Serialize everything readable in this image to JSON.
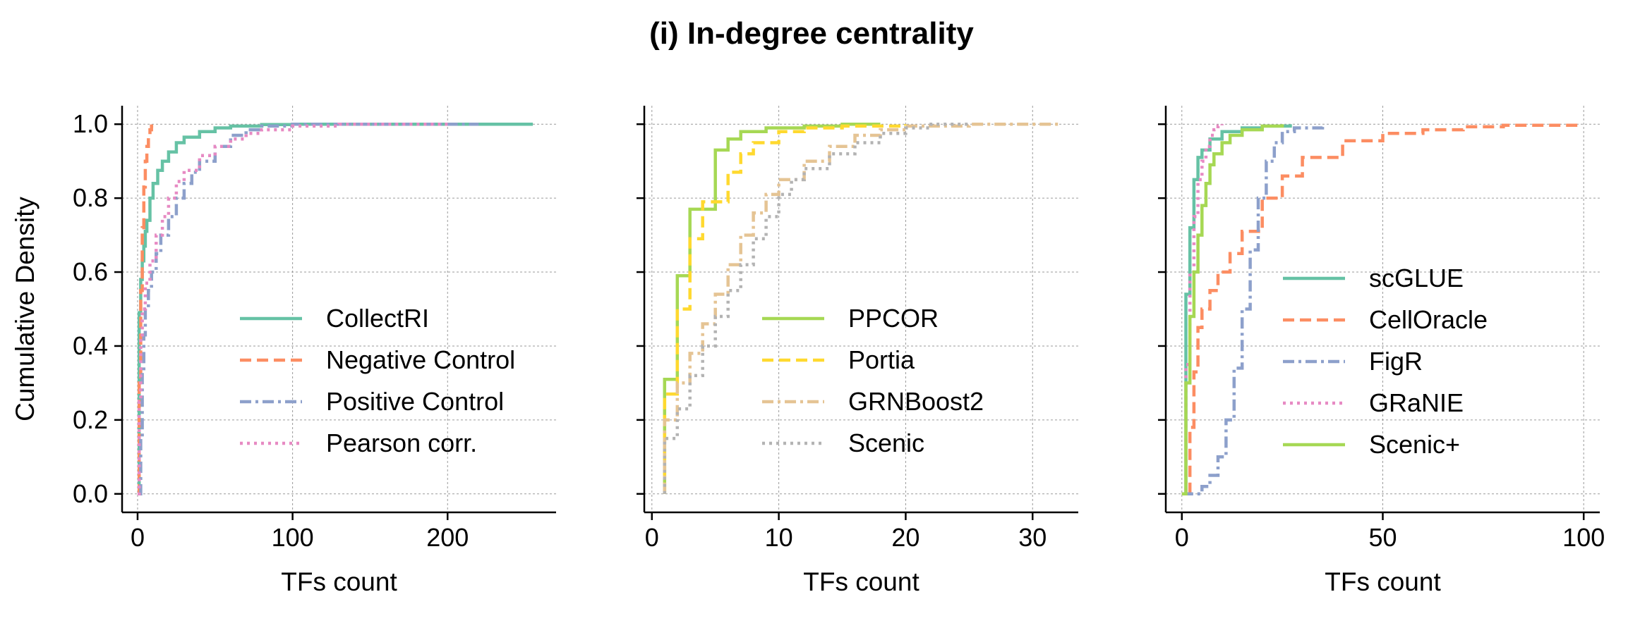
{
  "figure": {
    "title": "(i) In-degree centrality"
  },
  "chart_data": [
    {
      "type": "line",
      "step": true,
      "title": "",
      "xlabel": "TFs count",
      "ylabel": "Cumulative Density",
      "xlim": [
        -10,
        270
      ],
      "ylim": [
        -0.05,
        1.05
      ],
      "xticks": [
        0,
        100,
        200
      ],
      "yticks": [
        0.0,
        0.2,
        0.4,
        0.6,
        0.8,
        1.0
      ],
      "grid": true,
      "legend": "lower-right",
      "series": [
        {
          "name": "CollectRI",
          "color": "#66c2a5",
          "dash": "solid",
          "points": [
            [
              0,
              0
            ],
            [
              1,
              0.49
            ],
            [
              2,
              0.58
            ],
            [
              3,
              0.63
            ],
            [
              4,
              0.67
            ],
            [
              5,
              0.71
            ],
            [
              6,
              0.74
            ],
            [
              8,
              0.8
            ],
            [
              10,
              0.84
            ],
            [
              13,
              0.875
            ],
            [
              16,
              0.9
            ],
            [
              20,
              0.925
            ],
            [
              25,
              0.95
            ],
            [
              30,
              0.965
            ],
            [
              40,
              0.98
            ],
            [
              50,
              0.99
            ],
            [
              60,
              0.995
            ],
            [
              80,
              0.999
            ],
            [
              100,
              1.0
            ],
            [
              255,
              1.0
            ]
          ]
        },
        {
          "name": "Negative Control",
          "color": "#fc8d62",
          "dash": "dashed",
          "points": [
            [
              0,
              0
            ],
            [
              1,
              0.3
            ],
            [
              2,
              0.55
            ],
            [
              3,
              0.72
            ],
            [
              4,
              0.83
            ],
            [
              5,
              0.9
            ],
            [
              6,
              0.94
            ],
            [
              7,
              0.97
            ],
            [
              8,
              0.985
            ],
            [
              9,
              0.995
            ],
            [
              11,
              1.0
            ]
          ]
        },
        {
          "name": "Positive Control",
          "color": "#8da0cb",
          "dash": "dashdot",
          "points": [
            [
              1,
              0
            ],
            [
              2,
              0.15
            ],
            [
              3,
              0.33
            ],
            [
              4,
              0.43
            ],
            [
              5,
              0.5
            ],
            [
              7,
              0.55
            ],
            [
              9,
              0.6
            ],
            [
              12,
              0.65
            ],
            [
              15,
              0.7
            ],
            [
              20,
              0.75
            ],
            [
              25,
              0.8
            ],
            [
              30,
              0.84
            ],
            [
              35,
              0.87
            ],
            [
              40,
              0.9
            ],
            [
              50,
              0.94
            ],
            [
              60,
              0.97
            ],
            [
              70,
              0.985
            ],
            [
              80,
              0.995
            ],
            [
              100,
              1.0
            ],
            [
              220,
              1.0
            ]
          ]
        },
        {
          "name": "Pearson corr.",
          "color": "#e78ac3",
          "dash": "dotted",
          "points": [
            [
              0,
              0
            ],
            [
              1,
              0.25
            ],
            [
              2,
              0.42
            ],
            [
              3,
              0.5
            ],
            [
              5,
              0.57
            ],
            [
              8,
              0.63
            ],
            [
              12,
              0.7
            ],
            [
              16,
              0.75
            ],
            [
              20,
              0.8
            ],
            [
              25,
              0.845
            ],
            [
              30,
              0.875
            ],
            [
              40,
              0.915
            ],
            [
              50,
              0.94
            ],
            [
              60,
              0.96
            ],
            [
              70,
              0.975
            ],
            [
              80,
              0.985
            ],
            [
              100,
              0.995
            ],
            [
              130,
              1.0
            ],
            [
              200,
              1.0
            ]
          ]
        }
      ]
    },
    {
      "type": "line",
      "step": true,
      "title": "",
      "xlabel": "TFs count",
      "ylabel": "",
      "xlim": [
        -0.6,
        33.6
      ],
      "ylim": [
        -0.05,
        1.05
      ],
      "xticks": [
        0,
        10,
        20,
        30
      ],
      "yticks": [
        0.0,
        0.2,
        0.4,
        0.6,
        0.8,
        1.0
      ],
      "grid": true,
      "legend": "lower-right",
      "series": [
        {
          "name": "PPCOR",
          "color": "#a6d854",
          "dash": "solid",
          "points": [
            [
              1,
              0
            ],
            [
              1,
              0.31
            ],
            [
              2,
              0.59
            ],
            [
              3,
              0.77
            ],
            [
              5,
              0.93
            ],
            [
              6,
              0.96
            ],
            [
              7,
              0.98
            ],
            [
              9,
              0.99
            ],
            [
              12,
              0.995
            ],
            [
              15,
              1.0
            ],
            [
              18,
              1.0
            ]
          ]
        },
        {
          "name": "Portia",
          "color": "#ffd92f",
          "dash": "dashed",
          "points": [
            [
              1,
              0
            ],
            [
              1,
              0.27
            ],
            [
              2,
              0.5
            ],
            [
              3,
              0.69
            ],
            [
              4,
              0.79
            ],
            [
              6,
              0.87
            ],
            [
              7,
              0.92
            ],
            [
              8,
              0.95
            ],
            [
              10,
              0.98
            ],
            [
              12,
              0.99
            ],
            [
              15,
              0.995
            ],
            [
              20,
              1.0
            ]
          ]
        },
        {
          "name": "GRNBoost2",
          "color": "#e5c494",
          "dash": "dashdot",
          "points": [
            [
              1,
              0
            ],
            [
              1,
              0.2
            ],
            [
              2,
              0.3
            ],
            [
              3,
              0.38
            ],
            [
              4,
              0.46
            ],
            [
              5,
              0.54
            ],
            [
              6,
              0.62
            ],
            [
              7,
              0.7
            ],
            [
              8,
              0.76
            ],
            [
              9,
              0.81
            ],
            [
              10,
              0.85
            ],
            [
              12,
              0.9
            ],
            [
              14,
              0.94
            ],
            [
              16,
              0.97
            ],
            [
              18,
              0.985
            ],
            [
              20,
              0.995
            ],
            [
              25,
              1.0
            ],
            [
              32,
              1.0
            ]
          ]
        },
        {
          "name": "Scenic",
          "color": "#b3b3b3",
          "dash": "dotted",
          "points": [
            [
              1,
              0
            ],
            [
              1,
              0.15
            ],
            [
              2,
              0.23
            ],
            [
              3,
              0.32
            ],
            [
              4,
              0.4
            ],
            [
              5,
              0.48
            ],
            [
              6,
              0.55
            ],
            [
              7,
              0.62
            ],
            [
              8,
              0.69
            ],
            [
              9,
              0.75
            ],
            [
              10,
              0.81
            ],
            [
              11,
              0.85
            ],
            [
              12,
              0.88
            ],
            [
              14,
              0.92
            ],
            [
              16,
              0.95
            ],
            [
              18,
              0.975
            ],
            [
              20,
              0.99
            ],
            [
              22,
              1.0
            ],
            [
              25,
              1.0
            ]
          ]
        }
      ]
    },
    {
      "type": "line",
      "step": true,
      "title": "",
      "xlabel": "TFs count",
      "ylabel": "",
      "xlim": [
        -4,
        104
      ],
      "ylim": [
        -0.05,
        1.05
      ],
      "xticks": [
        0,
        50,
        100
      ],
      "yticks": [
        0.0,
        0.2,
        0.4,
        0.6,
        0.8,
        1.0
      ],
      "grid": true,
      "legend": "center-right",
      "series": [
        {
          "name": "scGLUE",
          "color": "#66c2a5",
          "dash": "solid",
          "points": [
            [
              0,
              0
            ],
            [
              1,
              0.54
            ],
            [
              2,
              0.72
            ],
            [
              3,
              0.85
            ],
            [
              4,
              0.91
            ],
            [
              5,
              0.93
            ],
            [
              7,
              0.96
            ],
            [
              10,
              0.98
            ],
            [
              15,
              0.99
            ],
            [
              20,
              0.995
            ],
            [
              27,
              1.0
            ]
          ]
        },
        {
          "name": "CellOracle",
          "color": "#fc8d62",
          "dash": "dashed",
          "points": [
            [
              2,
              0
            ],
            [
              2,
              0.18
            ],
            [
              3,
              0.33
            ],
            [
              4,
              0.45
            ],
            [
              5,
              0.5
            ],
            [
              7,
              0.55
            ],
            [
              9,
              0.6
            ],
            [
              12,
              0.65
            ],
            [
              15,
              0.71
            ],
            [
              20,
              0.8
            ],
            [
              25,
              0.86
            ],
            [
              30,
              0.91
            ],
            [
              40,
              0.955
            ],
            [
              50,
              0.975
            ],
            [
              60,
              0.985
            ],
            [
              70,
              0.993
            ],
            [
              80,
              0.997
            ],
            [
              99,
              1.0
            ]
          ]
        },
        {
          "name": "FigR",
          "color": "#8da0cb",
          "dash": "dashdot",
          "points": [
            [
              0,
              0
            ],
            [
              5,
              0.02
            ],
            [
              7,
              0.05
            ],
            [
              9,
              0.1
            ],
            [
              11,
              0.2
            ],
            [
              13,
              0.34
            ],
            [
              15,
              0.5
            ],
            [
              17,
              0.66
            ],
            [
              19,
              0.8
            ],
            [
              21,
              0.9
            ],
            [
              23,
              0.95
            ],
            [
              25,
              0.98
            ],
            [
              28,
              0.99
            ],
            [
              35,
              1.0
            ]
          ]
        },
        {
          "name": "GRaNIE",
          "color": "#e78ac3",
          "dash": "dotted",
          "points": [
            [
              0,
              0
            ],
            [
              1,
              0.35
            ],
            [
              2,
              0.6
            ],
            [
              3,
              0.75
            ],
            [
              4,
              0.85
            ],
            [
              5,
              0.9
            ],
            [
              6,
              0.94
            ],
            [
              7,
              0.97
            ],
            [
              8,
              0.985
            ],
            [
              9,
              0.995
            ],
            [
              10,
              1.0
            ]
          ]
        },
        {
          "name": "Scenic+",
          "color": "#a6d854",
          "dash": "solid",
          "points": [
            [
              0,
              0
            ],
            [
              1,
              0.3
            ],
            [
              2,
              0.48
            ],
            [
              3,
              0.6
            ],
            [
              4,
              0.7
            ],
            [
              5,
              0.78
            ],
            [
              6,
              0.84
            ],
            [
              7,
              0.89
            ],
            [
              8,
              0.92
            ],
            [
              10,
              0.95
            ],
            [
              12,
              0.97
            ],
            [
              15,
              0.985
            ],
            [
              20,
              0.995
            ],
            [
              25,
              1.0
            ]
          ]
        }
      ]
    }
  ]
}
